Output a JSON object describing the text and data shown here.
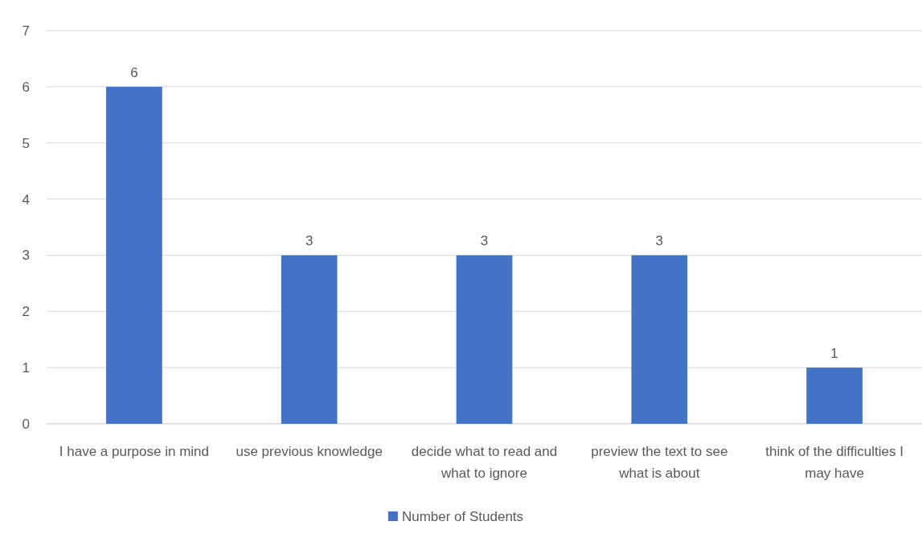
{
  "chart_data": {
    "type": "bar",
    "categories": [
      "I have a purpose in mind",
      "use previous knowledge",
      "decide what to read and what to ignore",
      "preview the text to see what is about",
      "think of the difficulties I may have"
    ],
    "series": [
      {
        "name": "Number of Students",
        "color": "#4472c4",
        "values": [
          6,
          3,
          3,
          3,
          1
        ]
      }
    ],
    "ylim": [
      0,
      7
    ],
    "yticks": [
      0,
      1,
      2,
      3,
      4,
      5,
      6,
      7
    ],
    "grid": "y",
    "data_labels": true,
    "legend": "bottom"
  }
}
